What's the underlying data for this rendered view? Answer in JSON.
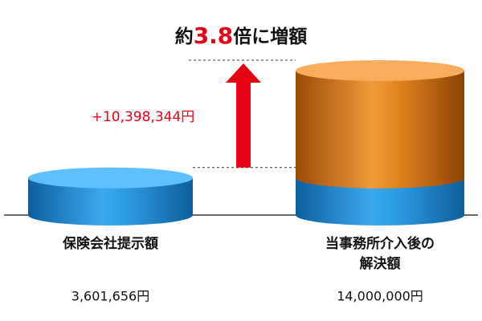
{
  "chart_data": {
    "type": "stacked-cylinder",
    "title": {
      "prefix": "約",
      "ratio": "3.8",
      "suffix": "倍に増額"
    },
    "categories": [
      "保険会社提示額",
      "当事務所介入後の解決額"
    ],
    "series": [
      {
        "color": "#1f86d0",
        "values": [
          3601656,
          3601656
        ]
      },
      {
        "color": "#e07812",
        "values": [
          null,
          10398344
        ]
      }
    ],
    "totals": [
      3601656,
      14000000
    ],
    "total_labels": [
      "3,601,656円",
      "14,000,000円"
    ],
    "difference_label": "+10,398,344円",
    "accent_color": "#e60012"
  }
}
